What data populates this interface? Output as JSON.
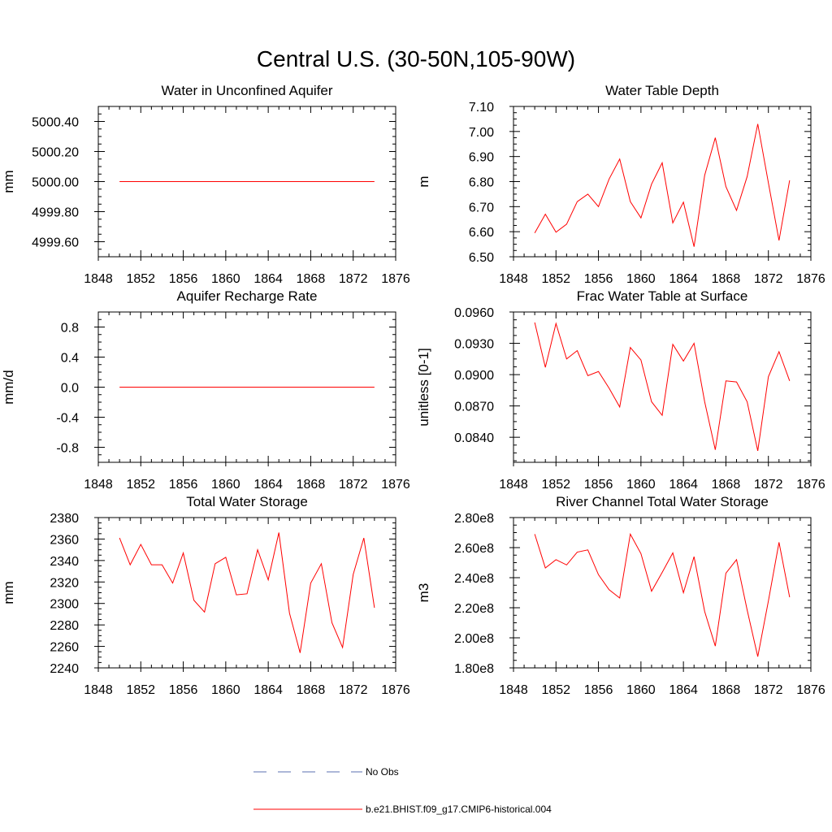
{
  "title": "Central U.S. (30-50N,105-90W)",
  "legend": {
    "items": [
      {
        "label": "No Obs",
        "color": "#5b6fb0",
        "style": "dashed"
      },
      {
        "label": "b.e21.BHIST.f09_g17.CMIP6-historical.004",
        "color": "#ff0000",
        "style": "solid"
      }
    ]
  },
  "chart_data": [
    {
      "type": "line",
      "title": "Water in Unconfined Aquifer",
      "ylabel": "mm",
      "xlim": [
        1848,
        1876
      ],
      "xticks": [
        1848,
        1852,
        1856,
        1860,
        1864,
        1868,
        1872,
        1876
      ],
      "xtick_labels": [
        "1848",
        "1852",
        "1856",
        "1860",
        "1864",
        "1868",
        "1872",
        "1876"
      ],
      "ylim": [
        4999.5,
        5000.5
      ],
      "yticks": [
        4999.6,
        4999.8,
        5000.0,
        5000.2,
        5000.4
      ],
      "ytick_labels": [
        "4999.60",
        "4999.80",
        "5000.00",
        "5000.20",
        "5000.40"
      ],
      "series": [
        {
          "color": "#ff0000",
          "x": [
            1850,
            1874
          ],
          "y": [
            5000.0,
            5000.0
          ]
        }
      ]
    },
    {
      "type": "line",
      "title": "Water Table Depth",
      "ylabel": "m",
      "xlim": [
        1848,
        1876
      ],
      "xticks": [
        1848,
        1852,
        1856,
        1860,
        1864,
        1868,
        1872,
        1876
      ],
      "xtick_labels": [
        "1848",
        "1852",
        "1856",
        "1860",
        "1864",
        "1868",
        "1872",
        "1876"
      ],
      "ylim": [
        6.5,
        7.1
      ],
      "yticks": [
        6.5,
        6.6,
        6.7,
        6.8,
        6.9,
        7.0,
        7.1
      ],
      "ytick_labels": [
        "6.50",
        "6.60",
        "6.70",
        "6.80",
        "6.90",
        "7.00",
        "7.10"
      ],
      "series": [
        {
          "color": "#ff0000",
          "x": [
            1850,
            1851,
            1852,
            1853,
            1854,
            1855,
            1856,
            1857,
            1858,
            1859,
            1860,
            1861,
            1862,
            1863,
            1864,
            1865,
            1866,
            1867,
            1868,
            1869,
            1870,
            1871,
            1872,
            1873,
            1874
          ],
          "y": [
            6.595,
            6.67,
            6.598,
            6.63,
            6.72,
            6.75,
            6.7,
            6.81,
            6.89,
            6.72,
            6.655,
            6.79,
            6.875,
            6.635,
            6.718,
            6.54,
            6.825,
            6.975,
            6.78,
            6.685,
            6.82,
            7.03,
            6.795,
            6.565,
            6.805
          ]
        }
      ]
    },
    {
      "type": "line",
      "title": "Aquifer Recharge Rate",
      "ylabel": "mm/d",
      "xlim": [
        1848,
        1876
      ],
      "xticks": [
        1848,
        1852,
        1856,
        1860,
        1864,
        1868,
        1872,
        1876
      ],
      "xtick_labels": [
        "1848",
        "1852",
        "1856",
        "1860",
        "1864",
        "1868",
        "1872",
        "1876"
      ],
      "ylim": [
        -1.0,
        1.0
      ],
      "yticks": [
        -0.8,
        -0.4,
        0.0,
        0.4,
        0.8
      ],
      "ytick_labels": [
        "-0.8",
        "-0.4",
        "0.0",
        "0.4",
        "0.8"
      ],
      "series": [
        {
          "color": "#ff0000",
          "x": [
            1850,
            1874
          ],
          "y": [
            0.0,
            0.0
          ]
        }
      ]
    },
    {
      "type": "line",
      "title": "Frac Water Table at Surface",
      "ylabel": "unitless [0-1]",
      "xlim": [
        1848,
        1876
      ],
      "xticks": [
        1848,
        1852,
        1856,
        1860,
        1864,
        1868,
        1872,
        1876
      ],
      "xtick_labels": [
        "1848",
        "1852",
        "1856",
        "1860",
        "1864",
        "1868",
        "1872",
        "1876"
      ],
      "ylim": [
        0.0816,
        0.096
      ],
      "yticks": [
        0.084,
        0.087,
        0.09,
        0.093,
        0.096
      ],
      "ytick_labels": [
        "0.0840",
        "0.0870",
        "0.0900",
        "0.0930",
        "0.0960"
      ],
      "series": [
        {
          "color": "#ff0000",
          "x": [
            1850,
            1851,
            1852,
            1853,
            1854,
            1855,
            1856,
            1857,
            1858,
            1859,
            1860,
            1861,
            1862,
            1863,
            1864,
            1865,
            1866,
            1867,
            1868,
            1869,
            1870,
            1871,
            1872,
            1873,
            1874
          ],
          "y": [
            0.095,
            0.0907,
            0.0949,
            0.0915,
            0.0923,
            0.0899,
            0.0903,
            0.0887,
            0.0869,
            0.0926,
            0.0914,
            0.0874,
            0.0861,
            0.0929,
            0.0913,
            0.093,
            0.0874,
            0.0828,
            0.0894,
            0.0893,
            0.0874,
            0.0827,
            0.0898,
            0.0922,
            0.0894
          ]
        }
      ]
    },
    {
      "type": "line",
      "title": "Total Water Storage",
      "ylabel": "mm",
      "xlim": [
        1848,
        1876
      ],
      "xticks": [
        1848,
        1852,
        1856,
        1860,
        1864,
        1868,
        1872,
        1876
      ],
      "xtick_labels": [
        "1848",
        "1852",
        "1856",
        "1860",
        "1864",
        "1868",
        "1872",
        "1876"
      ],
      "ylim": [
        2240,
        2380
      ],
      "yticks": [
        2240,
        2260,
        2280,
        2300,
        2320,
        2340,
        2360,
        2380
      ],
      "ytick_labels": [
        "2240",
        "2260",
        "2280",
        "2300",
        "2320",
        "2340",
        "2360",
        "2380"
      ],
      "series": [
        {
          "color": "#ff0000",
          "x": [
            1850,
            1851,
            1852,
            1853,
            1854,
            1855,
            1856,
            1857,
            1858,
            1859,
            1860,
            1861,
            1862,
            1863,
            1864,
            1865,
            1866,
            1867,
            1868,
            1869,
            1870,
            1871,
            1872,
            1873,
            1874
          ],
          "y": [
            2361,
            2336,
            2355,
            2336,
            2336,
            2319,
            2347,
            2303,
            2292,
            2337,
            2343,
            2308,
            2309,
            2350,
            2322,
            2366,
            2291,
            2254,
            2319,
            2337,
            2282,
            2259,
            2327,
            2361,
            2296
          ]
        }
      ]
    },
    {
      "type": "line",
      "title": "River Channel Total Water Storage",
      "ylabel": "m3",
      "xlim": [
        1848,
        1876
      ],
      "xticks": [
        1848,
        1852,
        1856,
        1860,
        1864,
        1868,
        1872,
        1876
      ],
      "xtick_labels": [
        "1848",
        "1852",
        "1856",
        "1860",
        "1864",
        "1868",
        "1872",
        "1876"
      ],
      "ylim": [
        180000000,
        280000000
      ],
      "yticks": [
        180000000,
        200000000,
        220000000,
        240000000,
        260000000,
        280000000
      ],
      "ytick_labels": [
        "1.80e8",
        "2.00e8",
        "2.20e8",
        "2.40e8",
        "2.60e8",
        "2.80e8"
      ],
      "series": [
        {
          "color": "#ff0000",
          "x": [
            1850,
            1851,
            1852,
            1853,
            1854,
            1855,
            1856,
            1857,
            1858,
            1859,
            1860,
            1861,
            1862,
            1863,
            1864,
            1865,
            1866,
            1867,
            1868,
            1869,
            1870,
            1871,
            1872,
            1873,
            1874
          ],
          "y": [
            269000000,
            246500000,
            252000000,
            248500000,
            257000000,
            258500000,
            242000000,
            232000000,
            226500000,
            269000000,
            256000000,
            231000000,
            243500000,
            256500000,
            230000000,
            254000000,
            217500000,
            194500000,
            243000000,
            252000000,
            218500000,
            187500000,
            224500000,
            263500000,
            227000000
          ]
        }
      ]
    }
  ]
}
